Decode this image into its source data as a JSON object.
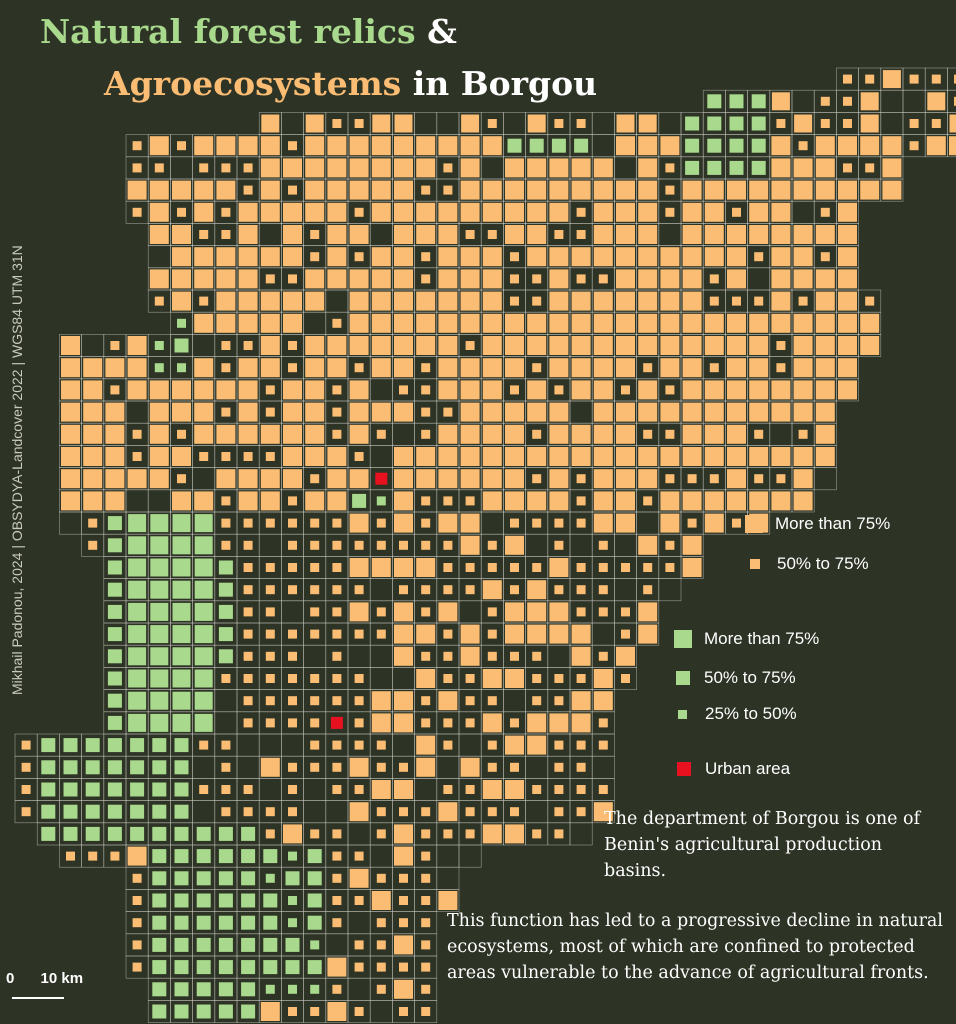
{
  "title": {
    "part1": "Natural forest relics",
    "amp": "&",
    "part2": "Agroecosystems",
    "part3": "in Borgou"
  },
  "credit": "Mikhail Padonou, 2024 | OBSYDYA-Landcover 2022 | WGS84 UTM 31N",
  "legend": {
    "agro": [
      {
        "label": "More than 75%",
        "color": "#fbbd73"
      },
      {
        "label": "50% to 75%",
        "color": "#fbbd73"
      }
    ],
    "forest": [
      {
        "label": "More than 75%",
        "color": "#a8d98c"
      },
      {
        "label": "50% to 75%",
        "color": "#a8d98c"
      },
      {
        "label": "25% to 50%",
        "color": "#a8d98c"
      }
    ],
    "urban": {
      "label": "Urban area",
      "color": "#e8111f"
    }
  },
  "description1": "The department of Borgou is one of Benin's agricultural production basins.",
  "description2": "This function has led to a progressive decline in natural ecosystems, most of which are confined to protected areas vulnerable to the advance of agricultural fronts.",
  "scale": {
    "start": "0",
    "end": "10 km"
  },
  "colors": {
    "background": "#2d3325",
    "agro": "#fbbd73",
    "forest": "#a8d98c",
    "urban": "#e8111f",
    "grid": "#c8c8c0"
  }
}
